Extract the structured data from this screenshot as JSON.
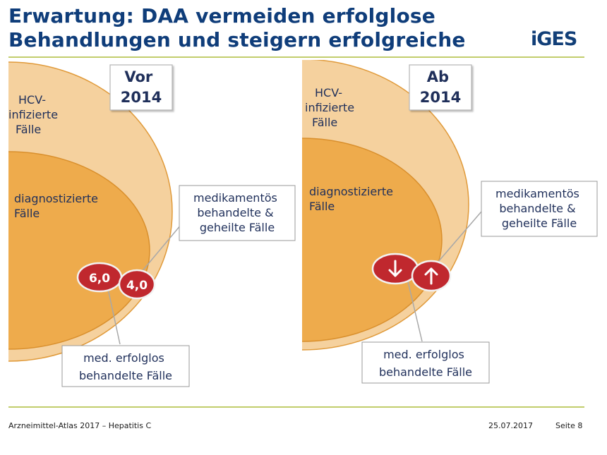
{
  "title": {
    "line1": "Erwartung: DAA vermeiden erfolglose",
    "line2": "Behandlungen und steigern erfolgreiche"
  },
  "logo": {
    "text": "iGES"
  },
  "colors": {
    "title": "#0f3d7a",
    "outer_circle": "#f5d19e",
    "inner_circle": "#eeab4c",
    "circle_edge": "#e09a3a",
    "badge": "#c0282e",
    "badge_edge": "#f2f2f2",
    "label_border": "#9a9a9a",
    "rule": "#c2cd6c"
  },
  "panels": [
    {
      "period": {
        "line1": "Vor",
        "line2": "2014"
      },
      "outer_label": {
        "line1": "HCV-",
        "line2": "infizierte",
        "line3": "Fälle"
      },
      "inner_label": {
        "line1": "diagnostizierte",
        "line2": "Fälle"
      },
      "success_label": {
        "line1": "medikamentös",
        "line2": "behandelte &",
        "line3": "geheilte Fälle"
      },
      "failure_label": {
        "line1": "med. erfolglos",
        "line2": "behandelte Fälle"
      },
      "badge_unsuccessful": {
        "value": "6,0",
        "icon": ""
      },
      "badge_successful": {
        "value": "4,0",
        "icon": ""
      }
    },
    {
      "period": {
        "line1": "Ab",
        "line2": "2014"
      },
      "outer_label": {
        "line1": "HCV-",
        "line2": "infizierte",
        "line3": "Fälle"
      },
      "inner_label": {
        "line1": "diagnostizierte",
        "line2": "Fälle"
      },
      "success_label": {
        "line1": "medikamentös",
        "line2": "behandelte &",
        "line3": "geheilte Fälle"
      },
      "failure_label": {
        "line1": "med. erfolglos",
        "line2": "behandelte Fälle"
      },
      "badge_unsuccessful": {
        "value": "",
        "icon": "arrow-down-icon"
      },
      "badge_successful": {
        "value": "",
        "icon": "arrow-up-icon"
      }
    }
  ],
  "footer": {
    "left": "Arzneimittel-Atlas 2017 – Hepatitis C",
    "date": "25.07.2017",
    "page": "Seite 8"
  }
}
